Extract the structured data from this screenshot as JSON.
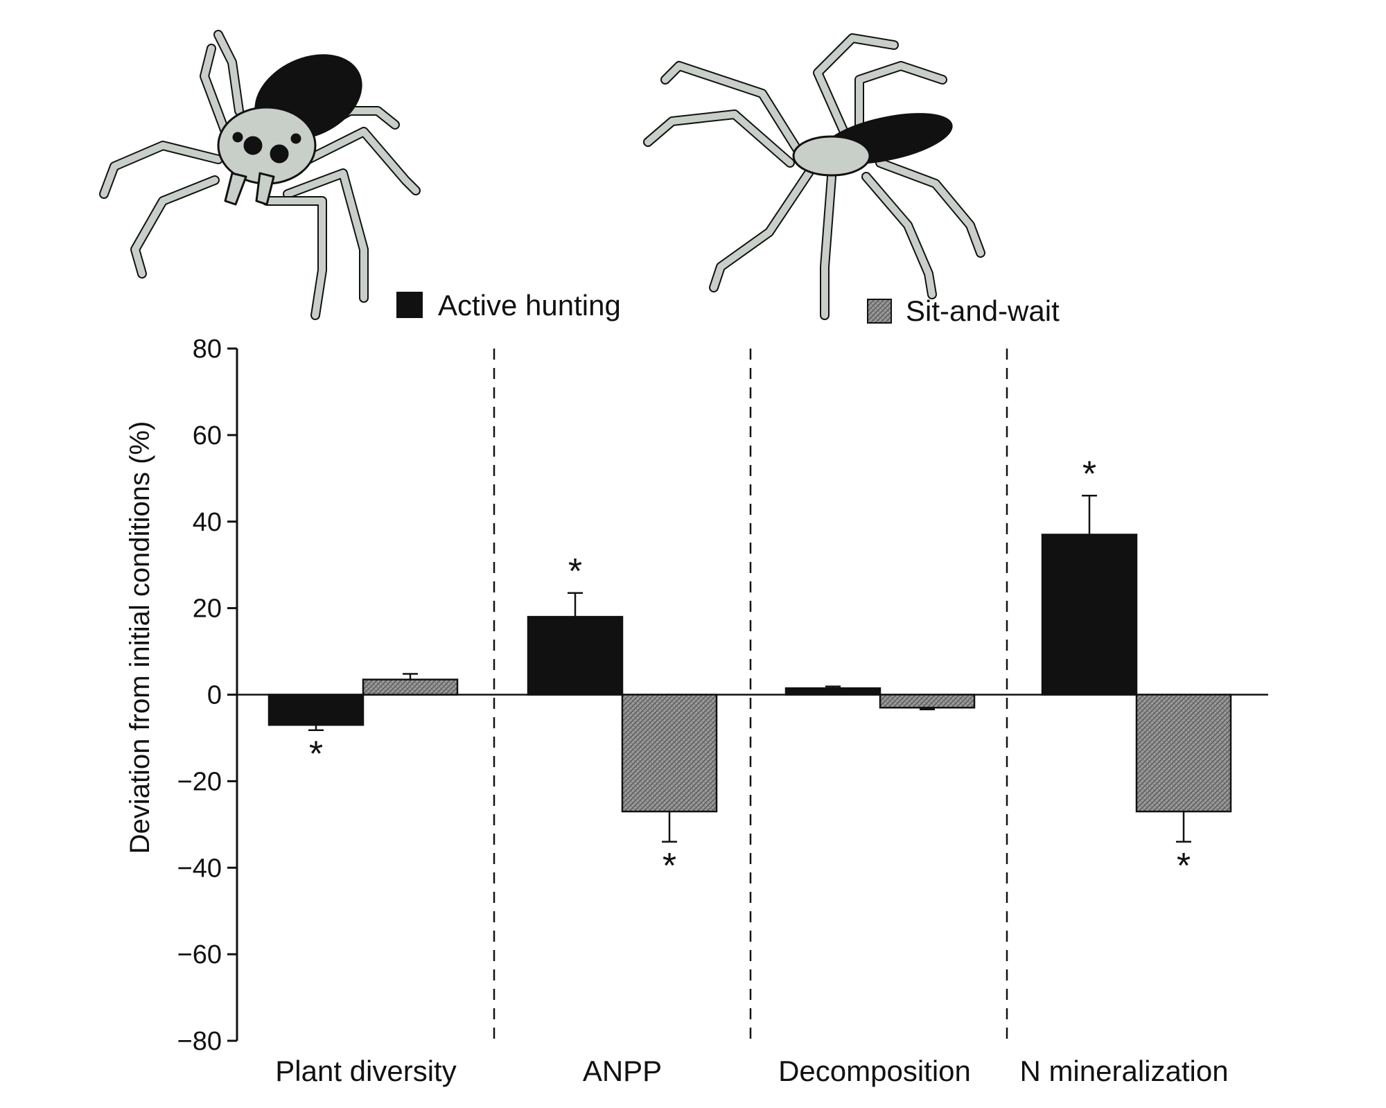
{
  "chart_data": {
    "type": "bar",
    "ylabel": "Deviation from initial conditions (%)",
    "ylim": [
      -80,
      80
    ],
    "yticks": [
      "80",
      "60",
      "40",
      "20",
      "0",
      "−20",
      "−40",
      "−60",
      "−80"
    ],
    "ytick_values": [
      80,
      60,
      40,
      20,
      0,
      -20,
      -40,
      -60,
      -80
    ],
    "categories": [
      "Plant diversity",
      "ANPP",
      "Decomposition",
      "N mineralization"
    ],
    "significance_marker": "*",
    "series": [
      {
        "name": "Active hunting",
        "color": "#111111",
        "pattern": "solid",
        "values": [
          -7,
          18,
          1.5,
          37
        ],
        "errors": [
          1.2,
          5.5,
          0.4,
          9
        ],
        "significant": [
          true,
          true,
          false,
          true
        ]
      },
      {
        "name": "Sit-and-wait",
        "color": "#8a8a8a",
        "pattern": "crosshatch",
        "values": [
          3.5,
          -27,
          -3,
          -27
        ],
        "errors": [
          1.3,
          7,
          0.4,
          7
        ],
        "significant": [
          false,
          true,
          false,
          true
        ]
      }
    ],
    "group_separators": "dashed",
    "illustrations": [
      "active-hunting-spider-illustration",
      "sit-and-wait-spider-illustration"
    ]
  }
}
